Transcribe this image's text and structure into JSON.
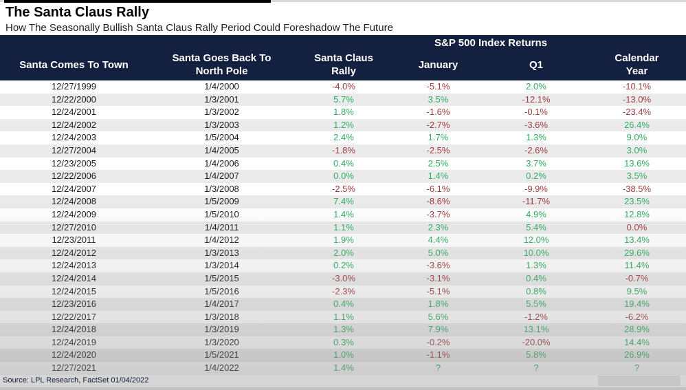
{
  "title": "The Santa Claus Rally",
  "subtitle": "How The Seasonally Bullish Santa Claus Rally Period Could Foreshadow The Future",
  "footer": {
    "source": "Source: LPL Research, FactSet 01/04/2022"
  },
  "colors": {
    "header_bg": "#13203F",
    "header_text": "#FFFFFF",
    "positive": "#2EAD63",
    "negative": "#A13A42",
    "row_alt_bg": "#EBEBEB",
    "date_text": "#1A1A1A"
  },
  "chart_data": {
    "type": "table",
    "title": "The Santa Claus Rally",
    "subtitle": "How The Seasonally Bullish Santa Claus Rally Period Could Foreshadow The Future",
    "group_header": "S&P 500 Index Returns",
    "group_header_spans_columns": [
      "Santa Claus Rally",
      "January",
      "Q1",
      "Calendar Year"
    ],
    "columns": [
      "Santa Comes To Town",
      "Santa Goes Back To North Pole",
      "Santa Claus Rally",
      "January",
      "Q1",
      "Calendar Year"
    ],
    "color_legend": {
      "k": "dark date text",
      "g": "green positive",
      "r": "red negative"
    },
    "rows": [
      {
        "cells": [
          "12/27/1999",
          "1/4/2000",
          "-4.0%",
          "-5.1%",
          "2.0%",
          "-10.1%"
        ],
        "colors": [
          "k",
          "k",
          "r",
          "r",
          "g",
          "r"
        ]
      },
      {
        "cells": [
          "12/22/2000",
          "1/3/2001",
          "5.7%",
          "3.5%",
          "-12.1%",
          "-13.0%"
        ],
        "colors": [
          "k",
          "k",
          "g",
          "g",
          "r",
          "r"
        ]
      },
      {
        "cells": [
          "12/24/2001",
          "1/3/2002",
          "1.8%",
          "-1.6%",
          "-0.1%",
          "-23.4%"
        ],
        "colors": [
          "k",
          "k",
          "g",
          "r",
          "r",
          "r"
        ]
      },
      {
        "cells": [
          "12/24/2002",
          "1/3/2003",
          "1.2%",
          "-2.7%",
          "-3.6%",
          "26.4%"
        ],
        "colors": [
          "k",
          "k",
          "g",
          "r",
          "r",
          "g"
        ]
      },
      {
        "cells": [
          "12/24/2003",
          "1/5/2004",
          "2.4%",
          "1.7%",
          "1.3%",
          "9.0%"
        ],
        "colors": [
          "k",
          "k",
          "g",
          "g",
          "g",
          "g"
        ]
      },
      {
        "cells": [
          "12/27/2004",
          "1/4/2005",
          "-1.8%",
          "-2.5%",
          "-2.6%",
          "3.0%"
        ],
        "colors": [
          "k",
          "k",
          "r",
          "r",
          "r",
          "g"
        ]
      },
      {
        "cells": [
          "12/23/2005",
          "1/4/2006",
          "0.4%",
          "2.5%",
          "3.7%",
          "13.6%"
        ],
        "colors": [
          "k",
          "k",
          "g",
          "g",
          "g",
          "g"
        ]
      },
      {
        "cells": [
          "12/22/2006",
          "1/4/2007",
          "0.0%",
          "1.4%",
          "0.2%",
          "3.5%"
        ],
        "colors": [
          "k",
          "k",
          "g",
          "g",
          "g",
          "g"
        ]
      },
      {
        "cells": [
          "12/24/2007",
          "1/3/2008",
          "-2.5%",
          "-6.1%",
          "-9.9%",
          "-38.5%"
        ],
        "colors": [
          "k",
          "k",
          "r",
          "r",
          "r",
          "r"
        ]
      },
      {
        "cells": [
          "12/24/2008",
          "1/5/2009",
          "7.4%",
          "-8.6%",
          "-11.7%",
          "23.5%"
        ],
        "colors": [
          "k",
          "k",
          "g",
          "r",
          "r",
          "g"
        ]
      },
      {
        "cells": [
          "12/24/2009",
          "1/5/2010",
          "1.4%",
          "-3.7%",
          "4.9%",
          "12.8%"
        ],
        "colors": [
          "k",
          "k",
          "g",
          "r",
          "g",
          "g"
        ]
      },
      {
        "cells": [
          "12/27/2010",
          "1/4/2011",
          "1.1%",
          "2.3%",
          "5.4%",
          "0.0%"
        ],
        "colors": [
          "k",
          "k",
          "g",
          "g",
          "g",
          "r"
        ]
      },
      {
        "cells": [
          "12/23/2011",
          "1/4/2012",
          "1.9%",
          "4.4%",
          "12.0%",
          "13.4%"
        ],
        "colors": [
          "k",
          "k",
          "g",
          "g",
          "g",
          "g"
        ]
      },
      {
        "cells": [
          "12/24/2012",
          "1/3/2013",
          "2.0%",
          "5.0%",
          "10.0%",
          "29.6%"
        ],
        "colors": [
          "k",
          "k",
          "g",
          "g",
          "g",
          "g"
        ]
      },
      {
        "cells": [
          "12/24/2013",
          "1/3/2014",
          "0.2%",
          "-3.6%",
          "1.3%",
          "11.4%"
        ],
        "colors": [
          "k",
          "k",
          "g",
          "r",
          "g",
          "g"
        ]
      },
      {
        "cells": [
          "12/24/2014",
          "1/5/2015",
          "-3.0%",
          "-3.1%",
          "0.4%",
          "-0.7%"
        ],
        "colors": [
          "k",
          "k",
          "r",
          "r",
          "g",
          "r"
        ]
      },
      {
        "cells": [
          "12/24/2015",
          "1/5/2016",
          "-2.3%",
          "-5.1%",
          "0.8%",
          "9.5%"
        ],
        "colors": [
          "k",
          "k",
          "r",
          "r",
          "g",
          "g"
        ]
      },
      {
        "cells": [
          "12/23/2016",
          "1/4/2017",
          "0.4%",
          "1.8%",
          "5.5%",
          "19.4%"
        ],
        "colors": [
          "k",
          "k",
          "g",
          "g",
          "g",
          "g"
        ]
      },
      {
        "cells": [
          "12/22/2017",
          "1/3/2018",
          "1.1%",
          "5.6%",
          "-1.2%",
          "-6.2%"
        ],
        "colors": [
          "k",
          "k",
          "g",
          "g",
          "r",
          "r"
        ]
      },
      {
        "cells": [
          "12/24/2018",
          "1/3/2019",
          "1.3%",
          "7.9%",
          "13.1%",
          "28.9%"
        ],
        "colors": [
          "k",
          "k",
          "g",
          "g",
          "g",
          "g"
        ]
      },
      {
        "cells": [
          "12/24/2019",
          "1/3/2020",
          "0.3%",
          "-0.2%",
          "-20.0%",
          "14.4%"
        ],
        "colors": [
          "k",
          "k",
          "g",
          "r",
          "r",
          "g"
        ]
      },
      {
        "cells": [
          "12/24/2020",
          "1/5/2021",
          "1.0%",
          "-1.1%",
          "5.8%",
          "26.9%"
        ],
        "colors": [
          "k",
          "k",
          "g",
          "r",
          "g",
          "g"
        ]
      },
      {
        "cells": [
          "12/27/2021",
          "1/4/2022",
          "1.4%",
          "?",
          "?",
          "?"
        ],
        "colors": [
          "k",
          "k",
          "g",
          "g",
          "g",
          "g"
        ]
      }
    ]
  }
}
